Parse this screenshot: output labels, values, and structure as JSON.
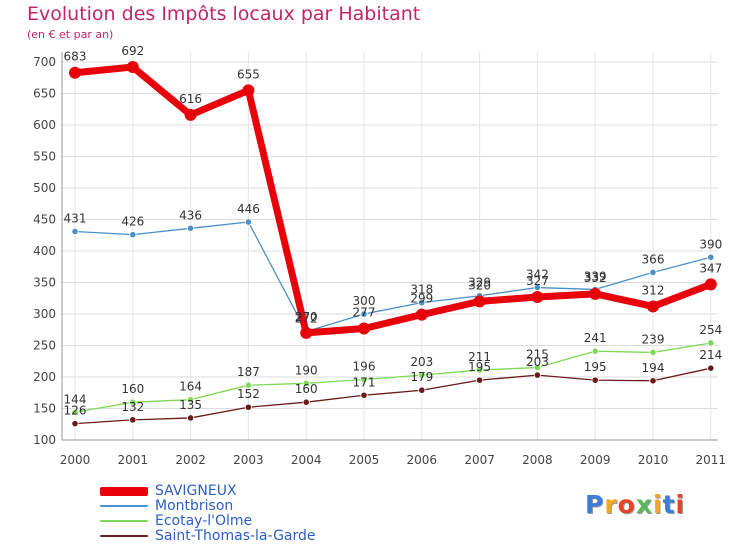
{
  "header": {
    "title": "Evolution des Impôts locaux par Habitant",
    "subtitle": "(en € et par an)"
  },
  "chart_data": {
    "type": "line",
    "title": "Evolution des Impôts locaux par Habitant",
    "subtitle": "(en € et par an)",
    "xlabel": "",
    "ylabel": "",
    "ylim": [
      100,
      700
    ],
    "yticks": [
      100,
      150,
      200,
      250,
      300,
      350,
      400,
      450,
      500,
      550,
      600,
      650,
      700
    ],
    "categories": [
      "2000",
      "2001",
      "2002",
      "2003",
      "2004",
      "2005",
      "2006",
      "2007",
      "2008",
      "2009",
      "2010",
      "2011"
    ],
    "grid": true,
    "legend_position": "bottom-left",
    "series": [
      {
        "name": "SAVIGNEUX",
        "color": "#e8000b",
        "values": [
          683,
          692,
          616,
          655,
          270,
          277,
          299,
          320,
          327,
          332,
          312,
          347
        ]
      },
      {
        "name": "Montbrison",
        "color": "#4a90c8",
        "values": [
          431,
          426,
          436,
          446,
          272,
          300,
          318,
          329,
          342,
          339,
          366,
          390
        ]
      },
      {
        "name": "Ecotay-l'Olme",
        "color": "#7ed957",
        "values": [
          144,
          160,
          164,
          187,
          190,
          196,
          203,
          211,
          215,
          241,
          239,
          254
        ]
      },
      {
        "name": "Saint-Thomas-la-Garde",
        "color": "#6b1a1a",
        "values": [
          126,
          132,
          135,
          152,
          160,
          171,
          179,
          195,
          203,
          195,
          194,
          214
        ]
      }
    ]
  },
  "logo": {
    "text": "Proxiti",
    "letters": [
      {
        "ch": "P",
        "color": "#3b7dd8"
      },
      {
        "ch": "r",
        "color": "#f5a623"
      },
      {
        "ch": "o",
        "color": "#e8412c"
      },
      {
        "ch": "x",
        "color": "#5bb85b"
      },
      {
        "ch": "i",
        "color": "#f5a623"
      },
      {
        "ch": "t",
        "color": "#3b7dd8"
      },
      {
        "ch": "i",
        "color": "#e8412c"
      }
    ]
  }
}
